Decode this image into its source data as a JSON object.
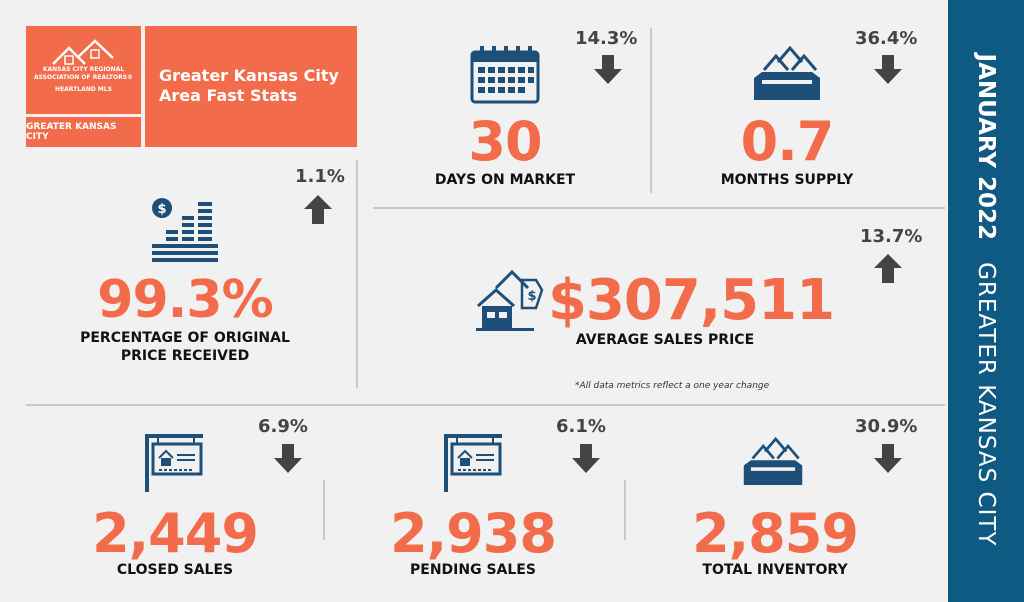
{
  "header": {
    "logo_line1": "KANSAS CITY REGIONAL",
    "logo_line2": "ASSOCIATION OF REALTORS®",
    "logo_line3": "HEARTLAND MLS",
    "logo_sub": "GREATER KANSAS CITY",
    "title": "Greater Kansas City Area Fast Stats"
  },
  "banner": {
    "month": "JANUARY 2022",
    "region": "GREATER KANSAS CITY"
  },
  "stats": {
    "days_on_market": {
      "value": "30",
      "label": "DAYS ON MARKET",
      "change": "14.3%",
      "direction": "down",
      "icon": "calendar-icon"
    },
    "months_supply": {
      "value": "0.7",
      "label": "MONTHS SUPPLY",
      "change": "36.4%",
      "direction": "down",
      "icon": "houses-box-icon"
    },
    "pct_original": {
      "value": "99.3%",
      "label_line1": "PERCENTAGE OF ORIGINAL",
      "label_line2": "PRICE RECEIVED",
      "change": "1.1%",
      "direction": "up",
      "icon": "coin-stacks-icon"
    },
    "avg_price": {
      "value": "$307,511",
      "label": "AVERAGE SALES PRICE",
      "change": "13.7%",
      "direction": "up",
      "icon": "house-price-tag-icon"
    },
    "closed_sales": {
      "value": "2,449",
      "label": "CLOSED SALES",
      "change": "6.9%",
      "direction": "down",
      "icon": "sale-sign-icon"
    },
    "pending_sales": {
      "value": "2,938",
      "label": "PENDING SALES",
      "change": "6.1%",
      "direction": "down",
      "icon": "sale-sign-icon"
    },
    "total_inventory": {
      "value": "2,859",
      "label": "TOTAL INVENTORY",
      "change": "30.9%",
      "direction": "down",
      "icon": "houses-box-icon"
    }
  },
  "note": "*All data metrics reflect a one year change",
  "colors": {
    "accent": "#f26b4a",
    "navy": "#0f5a82",
    "icon": "#1d4f79",
    "arrow": "#444444"
  }
}
